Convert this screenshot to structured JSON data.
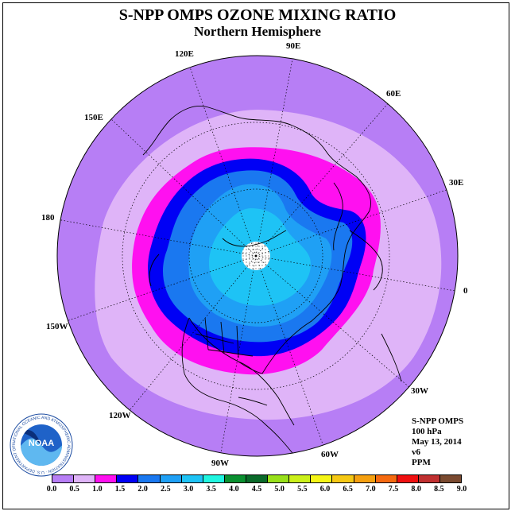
{
  "title": "S-NPP OMPS OZONE MIXING RATIO",
  "subtitle": "Northern Hemisphere",
  "longitude_labels": [
    {
      "text": "90E",
      "lon": 90
    },
    {
      "text": "60E",
      "lon": 60
    },
    {
      "text": "30E",
      "lon": 30
    },
    {
      "text": "0",
      "lon": 0
    },
    {
      "text": "30W",
      "lon": -30
    },
    {
      "text": "60W",
      "lon": -60
    },
    {
      "text": "90W",
      "lon": -90
    },
    {
      "text": "120W",
      "lon": -120
    },
    {
      "text": "150W",
      "lon": -150
    },
    {
      "text": "180",
      "lon": 180
    },
    {
      "text": "150E",
      "lon": 150
    },
    {
      "text": "120E",
      "lon": 120
    }
  ],
  "info": {
    "instrument": "S-NPP OMPS",
    "level": "100 hPa",
    "date": "May 13, 2014",
    "version": "v6",
    "units": "PPM"
  },
  "logo": {
    "text": "NOAA",
    "ring_text": "NATIONAL OCEANIC AND ATMOSPHERIC ADMINISTRATION · U.S. DEPARTMENT OF COMMERCE"
  },
  "colorbar": {
    "ticks": [
      "0.0",
      "0.5",
      "1.0",
      "1.5",
      "2.0",
      "2.5",
      "3.0",
      "3.5",
      "4.0",
      "4.5",
      "5.0",
      "5.5",
      "6.0",
      "6.5",
      "7.0",
      "7.5",
      "8.0",
      "8.5",
      "9.0"
    ],
    "colors": [
      "#b77ef5",
      "#dfb4f8",
      "#ff10f0",
      "#0000f5",
      "#1a78f0",
      "#1fa0f5",
      "#1ec3f5",
      "#20f5e0",
      "#0a9030",
      "#0a6a2a",
      "#98e01a",
      "#cbf01a",
      "#f5f516",
      "#f5c814",
      "#f5a010",
      "#f56a10",
      "#f01010",
      "#c03030",
      "#7a4a30"
    ]
  },
  "chart_data": {
    "type": "heatmap",
    "projection": "north-polar-stereographic",
    "variable": "Ozone mixing ratio",
    "level": "100 hPa",
    "units": "PPM",
    "date": "May 13, 2014",
    "scale_range": [
      0.0,
      9.0
    ],
    "scale_step": 0.5,
    "contour_bands": [
      {
        "range": [
          0.0,
          0.5
        ],
        "color": "#b77ef5"
      },
      {
        "range": [
          0.5,
          1.0
        ],
        "color": "#dfb4f8"
      },
      {
        "range": [
          1.0,
          1.5
        ],
        "color": "#ff10f0"
      },
      {
        "range": [
          1.5,
          2.0
        ],
        "color": "#0000f5"
      },
      {
        "range": [
          2.0,
          2.5
        ],
        "color": "#1a78f0"
      },
      {
        "range": [
          2.5,
          3.0
        ],
        "color": "#1fa0f5"
      },
      {
        "range": [
          3.0,
          3.5
        ],
        "color": "#1ec3f5"
      }
    ],
    "no_data_region": "polar cap (north pole)"
  }
}
